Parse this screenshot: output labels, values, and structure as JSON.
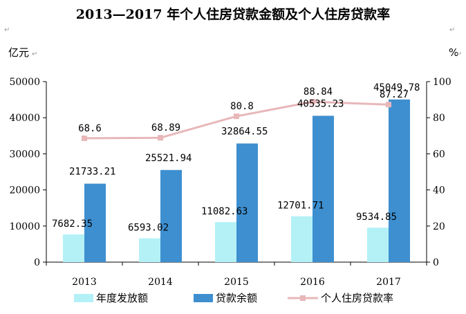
{
  "chart_data": {
    "type": "bar",
    "title": "2013—2017 年个人住房贷款金额及个人住房贷款率",
    "ylabel_left": "亿元",
    "ylabel_right": "%",
    "categories": [
      "2013",
      "2014",
      "2015",
      "2016",
      "2017"
    ],
    "ylim_left": [
      0,
      50000
    ],
    "yticks_left": [
      "0",
      "10000",
      "20000",
      "30000",
      "40000",
      "50000"
    ],
    "ylim_right": [
      0,
      100
    ],
    "yticks_right": [
      "0",
      "20",
      "40",
      "60",
      "80",
      "100"
    ],
    "series": [
      {
        "name": "年度发放额",
        "kind": "bar",
        "axis": "left",
        "color": "#b3f1f7",
        "values": [
          7682.35,
          6593.02,
          11082.63,
          12701.71,
          9534.85
        ],
        "labels": [
          "7682.35",
          "6593.02",
          "11082.63",
          "12701.71",
          "9534.85"
        ]
      },
      {
        "name": "贷款余额",
        "kind": "bar",
        "axis": "left",
        "color": "#3d8fd0",
        "values": [
          21733.21,
          25521.94,
          32864.55,
          40535.23,
          45049.78
        ],
        "labels": [
          "21733.21",
          "25521.94",
          "32864.55",
          "40535.23",
          "45049.78"
        ]
      },
      {
        "name": "个人住房贷款率",
        "kind": "line",
        "axis": "right",
        "color": "#e8b7b9",
        "values": [
          68.6,
          68.89,
          80.8,
          88.84,
          87.27
        ],
        "labels": [
          "68.6",
          "68.89",
          "80.8",
          "88.84",
          "87.27"
        ]
      }
    ],
    "grid": false,
    "legend_position": "bottom"
  }
}
